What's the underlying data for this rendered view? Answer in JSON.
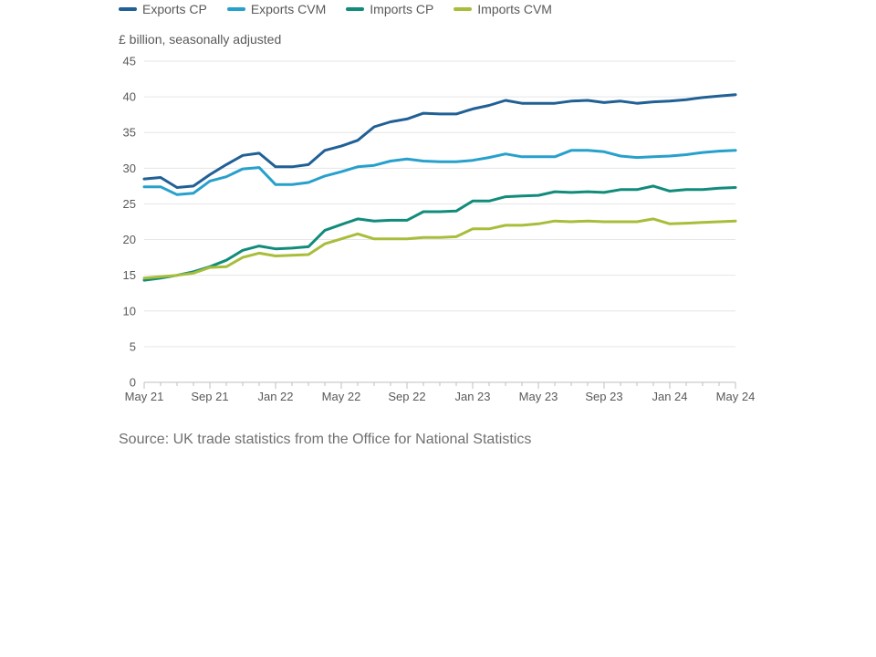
{
  "unit_label": "£ billion, seasonally adjusted",
  "source": "Source: UK trade statistics from the Office for National Statistics",
  "chart_data": {
    "type": "line",
    "title": "",
    "xlabel": "",
    "ylabel": "£ billion, seasonally adjusted",
    "ylim": [
      0,
      45
    ],
    "yticks": [
      0,
      5,
      10,
      15,
      20,
      25,
      30,
      35,
      40,
      45
    ],
    "grid": true,
    "legend_position": "top-left",
    "x": [
      "May 21",
      "Jun 21",
      "Jul 21",
      "Aug 21",
      "Sep 21",
      "Oct 21",
      "Nov 21",
      "Dec 21",
      "Jan 22",
      "Feb 22",
      "Mar 22",
      "Apr 22",
      "May 22",
      "Jun 22",
      "Jul 22",
      "Aug 22",
      "Sep 22",
      "Oct 22",
      "Nov 22",
      "Dec 22",
      "Jan 23",
      "Feb 23",
      "Mar 23",
      "Apr 23",
      "May 23",
      "Jun 23",
      "Jul 23",
      "Aug 23",
      "Sep 23",
      "Oct 23",
      "Nov 23",
      "Dec 23",
      "Jan 24",
      "Feb 24",
      "Mar 24",
      "Apr 24",
      "May 24"
    ],
    "x_tick_labels": [
      "May 21",
      "Sep 21",
      "Jan 22",
      "May 22",
      "Sep 22",
      "Jan 23",
      "May 23",
      "Sep 23",
      "Jan 24",
      "May 24"
    ],
    "series": [
      {
        "name": "Exports CP",
        "color": "#206095",
        "values": [
          28.5,
          28.7,
          27.3,
          27.5,
          29.1,
          30.5,
          31.8,
          32.1,
          30.2,
          30.2,
          30.5,
          32.5,
          33.1,
          33.9,
          35.8,
          36.5,
          36.9,
          37.7,
          37.6,
          37.6,
          38.3,
          38.8,
          39.5,
          39.1,
          39.1,
          39.1,
          39.4,
          39.5,
          39.2,
          39.4,
          39.1,
          39.3,
          39.4,
          39.6,
          39.9,
          40.1,
          40.3
        ]
      },
      {
        "name": "Exports CVM",
        "color": "#27a0cc",
        "values": [
          27.4,
          27.4,
          26.3,
          26.5,
          28.2,
          28.8,
          29.9,
          30.1,
          27.7,
          27.7,
          28.0,
          28.9,
          29.5,
          30.2,
          30.4,
          31.0,
          31.3,
          31.0,
          30.9,
          30.9,
          31.1,
          31.5,
          32.0,
          31.6,
          31.6,
          31.6,
          32.5,
          32.5,
          32.3,
          31.7,
          31.5,
          31.6,
          31.7,
          31.9,
          32.2,
          32.4,
          32.5
        ]
      },
      {
        "name": "Imports CP",
        "color": "#118c7b",
        "values": [
          14.3,
          14.6,
          15.0,
          15.5,
          16.2,
          17.1,
          18.5,
          19.1,
          18.7,
          18.8,
          19.0,
          21.3,
          22.1,
          22.9,
          22.6,
          22.7,
          22.7,
          23.9,
          23.9,
          24.0,
          25.4,
          25.4,
          26.0,
          26.1,
          26.2,
          26.7,
          26.6,
          26.7,
          26.6,
          27.0,
          27.0,
          27.5,
          26.8,
          27.0,
          27.0,
          27.2,
          27.3
        ]
      },
      {
        "name": "Imports CVM",
        "color": "#a8bd3a",
        "values": [
          14.6,
          14.8,
          15.0,
          15.3,
          16.1,
          16.2,
          17.5,
          18.1,
          17.7,
          17.8,
          17.9,
          19.4,
          20.1,
          20.8,
          20.1,
          20.1,
          20.1,
          20.3,
          20.3,
          20.4,
          21.5,
          21.5,
          22.0,
          22.0,
          22.2,
          22.6,
          22.5,
          22.6,
          22.5,
          22.5,
          22.5,
          22.9,
          22.2,
          22.3,
          22.4,
          22.5,
          22.6
        ]
      }
    ]
  }
}
